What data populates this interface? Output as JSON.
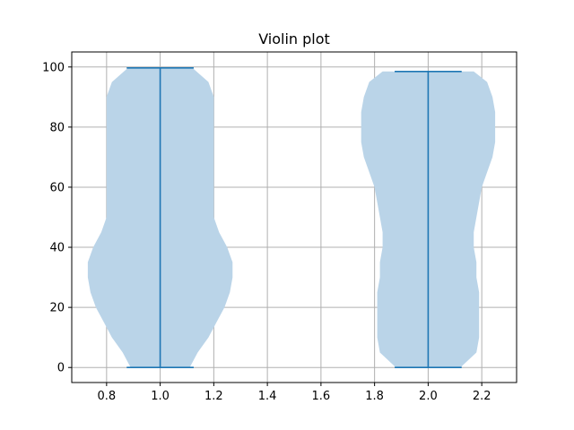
{
  "chart_data": {
    "type": "violin",
    "title": "Violin plot",
    "xlabel": "",
    "ylabel": "",
    "xlim": [
      0.67,
      2.33
    ],
    "ylim": [
      -5,
      105
    ],
    "xticks": [
      0.8,
      1.0,
      1.2,
      1.4,
      1.6,
      1.8,
      2.0,
      2.2
    ],
    "xtick_labels": [
      "0.8",
      "1.0",
      "1.2",
      "1.4",
      "1.6",
      "1.8",
      "2.0",
      "2.2"
    ],
    "yticks": [
      0,
      20,
      40,
      60,
      80,
      100
    ],
    "ytick_labels": [
      "0",
      "20",
      "40",
      "60",
      "80",
      "100"
    ],
    "grid": true,
    "colors": {
      "body": "#bad4e8",
      "lines": "#1f77b4",
      "grid": "#b0b0b0"
    },
    "violins": [
      {
        "position": 1.0,
        "min": 0,
        "max": 99.7,
        "profile": [
          [
            0,
            0.11
          ],
          [
            5,
            0.14
          ],
          [
            10,
            0.18
          ],
          [
            15,
            0.21
          ],
          [
            20,
            0.24
          ],
          [
            25,
            0.26
          ],
          [
            30,
            0.27
          ],
          [
            35,
            0.27
          ],
          [
            40,
            0.25
          ],
          [
            45,
            0.22
          ],
          [
            50,
            0.2
          ],
          [
            55,
            0.2
          ],
          [
            60,
            0.2
          ],
          [
            65,
            0.2
          ],
          [
            70,
            0.2
          ],
          [
            75,
            0.2
          ],
          [
            80,
            0.2
          ],
          [
            85,
            0.2
          ],
          [
            90,
            0.2
          ],
          [
            95,
            0.18
          ],
          [
            99.7,
            0.12
          ]
        ]
      },
      {
        "position": 2.0,
        "min": 0,
        "max": 98.5,
        "profile": [
          [
            0,
            0.12
          ],
          [
            5,
            0.18
          ],
          [
            10,
            0.19
          ],
          [
            15,
            0.19
          ],
          [
            20,
            0.19
          ],
          [
            25,
            0.19
          ],
          [
            30,
            0.18
          ],
          [
            35,
            0.18
          ],
          [
            40,
            0.17
          ],
          [
            45,
            0.17
          ],
          [
            50,
            0.18
          ],
          [
            55,
            0.19
          ],
          [
            60,
            0.2
          ],
          [
            65,
            0.22
          ],
          [
            70,
            0.24
          ],
          [
            75,
            0.25
          ],
          [
            80,
            0.25
          ],
          [
            85,
            0.25
          ],
          [
            90,
            0.24
          ],
          [
            95,
            0.22
          ],
          [
            98.5,
            0.17
          ]
        ]
      }
    ]
  }
}
